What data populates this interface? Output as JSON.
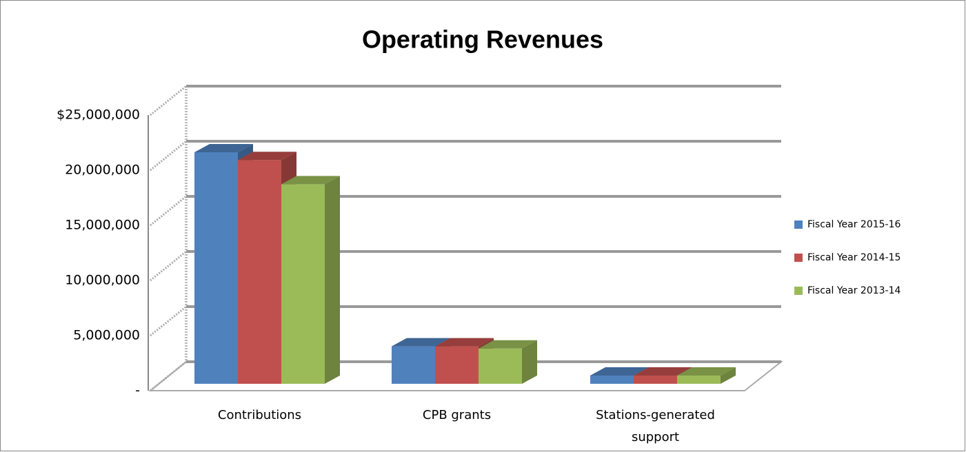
{
  "chart_data": {
    "type": "bar3d",
    "title": "Operating Revenues",
    "categories": [
      "Contributions",
      "CPB grants",
      "Stations-generated support"
    ],
    "series": [
      {
        "name": "Fiscal Year 2015-16",
        "color": "#4f81bd",
        "values": [
          21000000,
          3400000,
          750000
        ]
      },
      {
        "name": "Fiscal Year 2014-15",
        "color": "#c0504d",
        "values": [
          20300000,
          3400000,
          750000
        ]
      },
      {
        "name": "Fiscal Year 2013-14",
        "color": "#9bbb59",
        "values": [
          18100000,
          3200000,
          750000
        ]
      }
    ],
    "ylim": [
      0,
      25000000
    ],
    "yticks": [
      {
        "value": 0,
        "label": "-"
      },
      {
        "value": 5000000,
        "label": "5,000,000"
      },
      {
        "value": 10000000,
        "label": "10,000,000"
      },
      {
        "value": 15000000,
        "label": "15,000,000"
      },
      {
        "value": 20000000,
        "label": "20,000,000"
      },
      {
        "value": 25000000,
        "label": "$25,000,000"
      }
    ],
    "grid": true,
    "legend": "right"
  }
}
